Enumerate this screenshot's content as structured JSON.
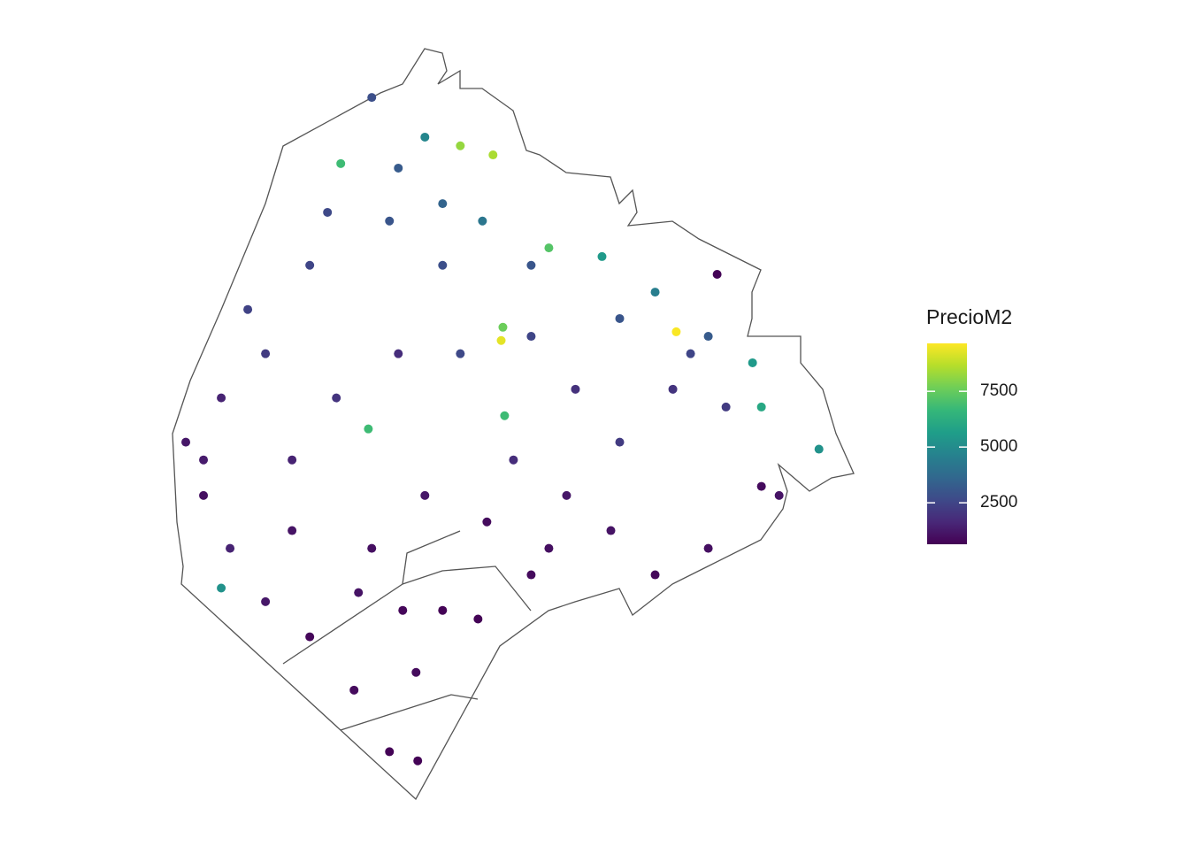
{
  "chart_data": {
    "type": "map",
    "legend_title": "PrecioM2",
    "xlim": [
      -58.535,
      -58.335
    ],
    "ylim": [
      -34.705,
      -34.523
    ],
    "lon": [
      -58.4765,
      -58.4609,
      -58.4856,
      -58.4505,
      -58.4409,
      -58.4713,
      -58.4947,
      -58.5077,
      -58.5207,
      -58.5311,
      -58.5259,
      -58.5181,
      -58.5077,
      -58.4947,
      -58.4817,
      -58.4713,
      -58.463,
      -58.4453,
      -58.4297,
      -58.4193,
      -58.4037,
      -58.3881,
      -58.3777,
      -58.3871,
      -58.3647,
      -58.3621,
      -58.3452,
      -58.4245,
      -58.4089,
      -58.4385,
      -58.438,
      -58.4375,
      -58.4775,
      -58.5207,
      -58.3933,
      -58.3777,
      -58.3621,
      -58.3569,
      -58.3751,
      -58.4557,
      -58.4687,
      -58.4869,
      -58.4999,
      -58.4609,
      -58.4427,
      -58.4245,
      -58.4063,
      -58.4505,
      -58.4297,
      -58.4037,
      -58.4167,
      -58.4349,
      -58.4765,
      -58.4999,
      -58.5259,
      -58.5129,
      -58.4895,
      -58.4687,
      -58.4557,
      -58.444,
      -58.4297,
      -58.3933,
      -58.3829,
      -58.3725,
      -58.4674,
      -58.4635,
      -58.4557,
      -58.4804
    ],
    "lat": [
      -34.5348,
      -34.5444,
      -34.5508,
      -34.5465,
      -34.5487,
      -34.5647,
      -34.5754,
      -34.5968,
      -34.6075,
      -34.6182,
      -34.6311,
      -34.6439,
      -34.6568,
      -34.6653,
      -34.6782,
      -34.6931,
      -34.6953,
      -34.661,
      -34.6503,
      -34.6311,
      -34.6182,
      -34.6054,
      -34.5926,
      -34.5915,
      -34.599,
      -34.6097,
      -34.6199,
      -34.5712,
      -34.5733,
      -34.5936,
      -34.5904,
      -34.6118,
      -34.615,
      -34.6535,
      -34.6503,
      -34.6439,
      -34.6289,
      -34.6311,
      -34.5776,
      -34.5754,
      -34.5968,
      -34.6075,
      -34.6225,
      -34.6311,
      -34.6375,
      -34.6439,
      -34.6396,
      -34.5968,
      -34.5926,
      -34.5883,
      -34.6054,
      -34.6225,
      -34.6439,
      -34.6396,
      -34.6225,
      -34.5861,
      -34.5626,
      -34.5519,
      -34.5605,
      -34.5647,
      -34.5754,
      -34.5819,
      -34.5968,
      -34.6097,
      -34.6589,
      -34.6739,
      -34.6589,
      -34.6546
    ],
    "values": [
      2800,
      4800,
      6800,
      8200,
      8500,
      3000,
      2500,
      2200,
      1500,
      1200,
      1000,
      1500,
      1200,
      800,
      900,
      700,
      700,
      700,
      900,
      1200,
      2200,
      2000,
      3200,
      9600,
      5500,
      6000,
      5200,
      7200,
      5500,
      9300,
      7600,
      6800,
      6800,
      5200,
      800,
      1000,
      900,
      1100,
      700,
      2800,
      1800,
      2000,
      1500,
      1200,
      900,
      1000,
      1100,
      2600,
      2500,
      3000,
      1900,
      1800,
      1000,
      1100,
      1300,
      2400,
      2600,
      3200,
      3500,
      4200,
      3000,
      4500,
      2500,
      2200,
      800,
      900,
      700,
      1100
    ],
    "color_range": [
      640,
      9650
    ],
    "color_ticks": [
      2500,
      5000,
      7500
    ],
    "colormap": [
      "#440154",
      "#482878",
      "#3e4a89",
      "#31688e",
      "#26828e",
      "#1f9e89",
      "#35b779",
      "#6ece58",
      "#b5de2b",
      "#fde725"
    ]
  }
}
